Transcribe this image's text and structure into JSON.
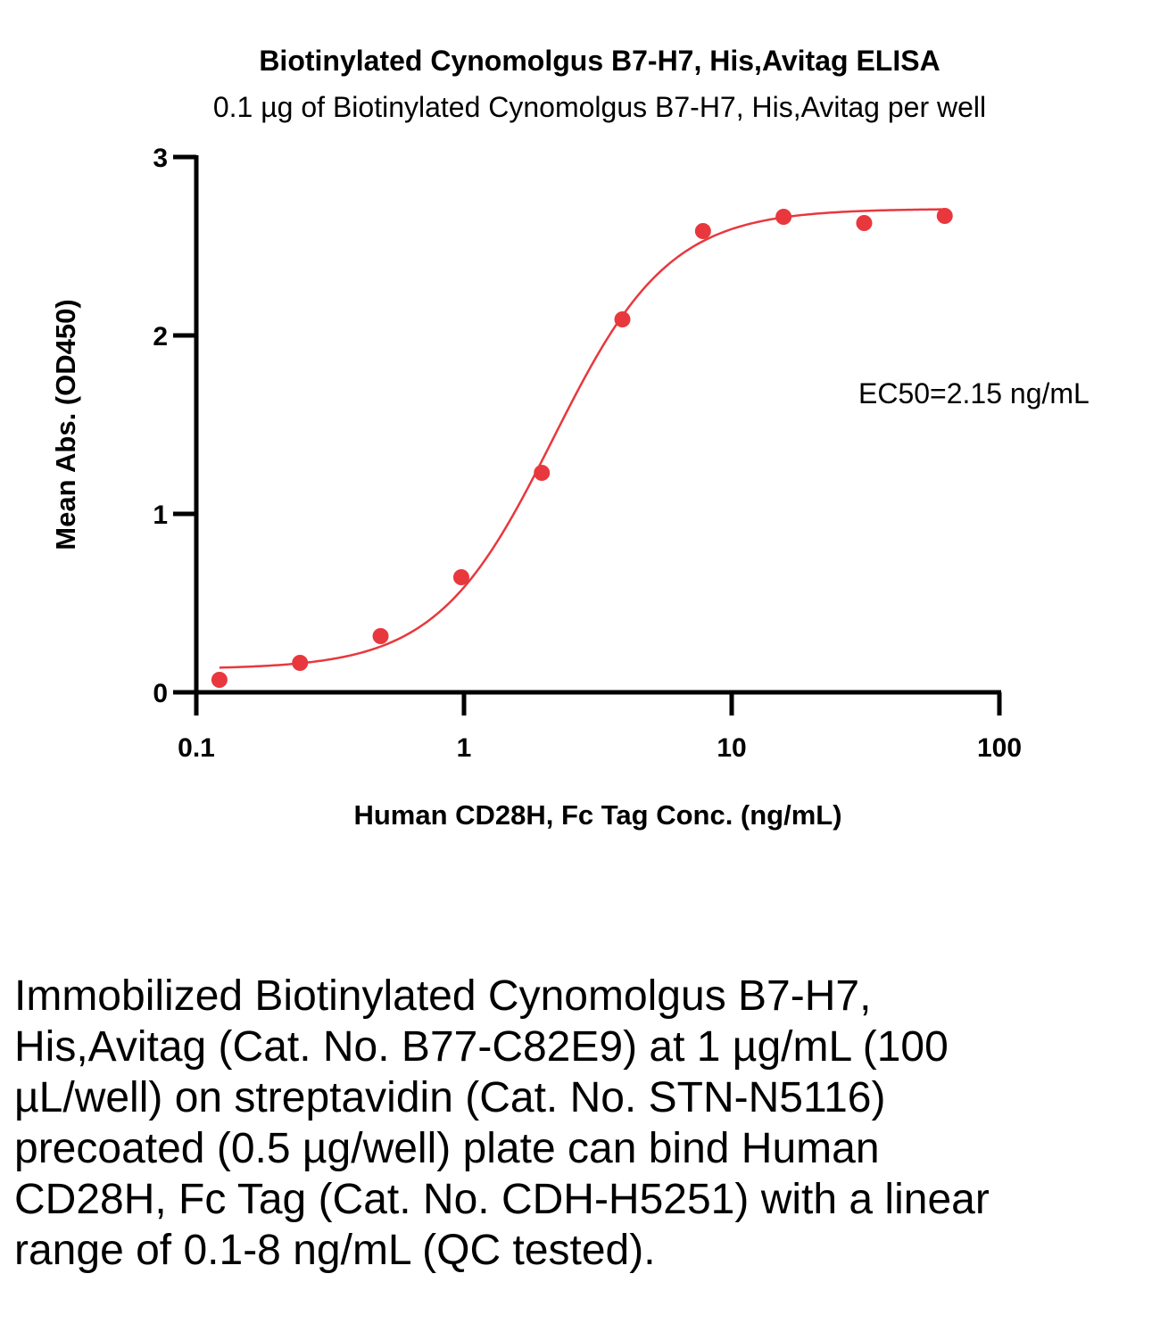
{
  "chart_data": {
    "type": "scatter",
    "title": "Biotinylated Cynomolgus B7-H7, His,Avitag ELISA",
    "subtitle": "0.1 µg of Biotinylated Cynomolgus B7-H7, His,Avitag per well",
    "xlabel": "Human CD28H, Fc Tag Conc. (ng/mL)",
    "ylabel": "Mean Abs. (OD450)",
    "xscale": "log",
    "xlim": [
      0.1,
      100
    ],
    "ylim": [
      0,
      3
    ],
    "xticks": [
      "0.1",
      "1",
      "10",
      "100"
    ],
    "yticks": [
      "0",
      "1",
      "2",
      "3"
    ],
    "grid": false,
    "color": "#e8383d",
    "series": [
      {
        "name": "Human CD28H, Fc Tag",
        "x": [
          0.122,
          0.244,
          0.488,
          0.977,
          1.953,
          3.906,
          7.813,
          15.625,
          31.25,
          62.5
        ],
        "y": [
          0.07,
          0.165,
          0.315,
          0.645,
          1.23,
          2.09,
          2.585,
          2.665,
          2.63,
          2.67
        ]
      }
    ],
    "fit": {
      "model": "4PL",
      "bottom": 0.13,
      "top": 2.71,
      "ec50": 2.15,
      "hill": 2.0
    },
    "annotation": "EC50=2.15 ng/mL"
  },
  "caption": "Immobilized Biotinylated Cynomolgus B7-H7, His,Avitag (Cat. No. B77-C82E9) at 1 µg/mL (100 µL/well) on streptavidin (Cat. No. STN-N5116) precoated (0.5 µg/well) plate can bind Human CD28H, Fc Tag (Cat. No. CDH-H5251) with a linear range of 0.1-8 ng/mL (QC tested)."
}
